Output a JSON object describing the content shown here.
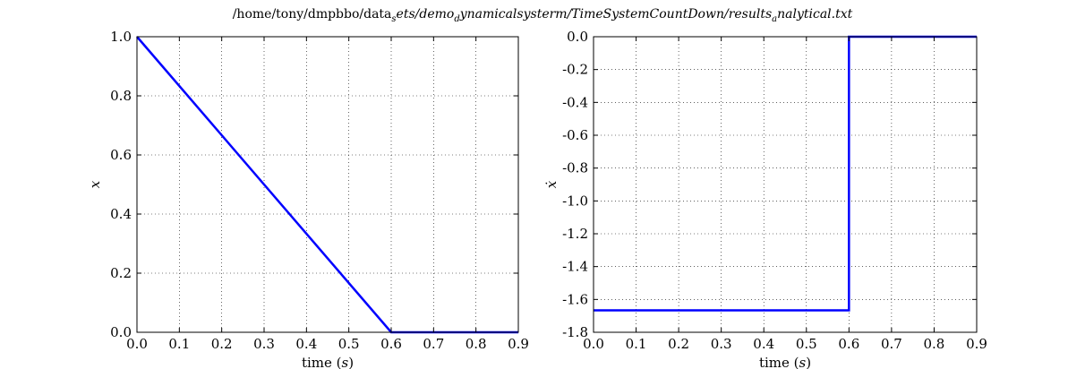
{
  "figure": {
    "title_main": "/home/tony/dmpbbo/data",
    "title_sub1": "s",
    "title_mid": "ets/demo",
    "title_sub2": "d",
    "title_rest": "ynamicalsysterm/TimeSystemCountDown/results",
    "title_sub3": "a",
    "title_end": "nalytical.txt"
  },
  "chart_data": [
    {
      "type": "line",
      "title": "",
      "xlabel": "time",
      "xlabel_unit": "s",
      "ylabel": "x",
      "xlim": [
        0.0,
        0.9
      ],
      "ylim": [
        0.0,
        1.0
      ],
      "xticks": [
        "0.0",
        "0.1",
        "0.2",
        "0.3",
        "0.4",
        "0.5",
        "0.6",
        "0.7",
        "0.8",
        "0.9"
      ],
      "yticks": [
        "0.0",
        "0.2",
        "0.4",
        "0.6",
        "0.8",
        "1.0"
      ],
      "grid": true,
      "series": [
        {
          "color": "#0000ff",
          "x": [
            0.0,
            0.6,
            0.9
          ],
          "y": [
            1.0,
            0.0,
            0.0
          ]
        }
      ]
    },
    {
      "type": "line",
      "title": "",
      "xlabel": "time",
      "xlabel_unit": "s",
      "ylabel": "ẋ",
      "xlim": [
        0.0,
        0.9
      ],
      "ylim": [
        -1.8,
        0.0
      ],
      "xticks": [
        "0.0",
        "0.1",
        "0.2",
        "0.3",
        "0.4",
        "0.5",
        "0.6",
        "0.7",
        "0.8",
        "0.9"
      ],
      "yticks": [
        "0.0",
        "-0.2",
        "-0.4",
        "-0.6",
        "-0.8",
        "-1.0",
        "-1.2",
        "-1.4",
        "-1.6",
        "-1.8"
      ],
      "grid": true,
      "series": [
        {
          "color": "#0000ff",
          "x": [
            0.0,
            0.6,
            0.6,
            0.9
          ],
          "y": [
            -1.6667,
            -1.6667,
            0.0,
            0.0
          ]
        }
      ]
    }
  ]
}
